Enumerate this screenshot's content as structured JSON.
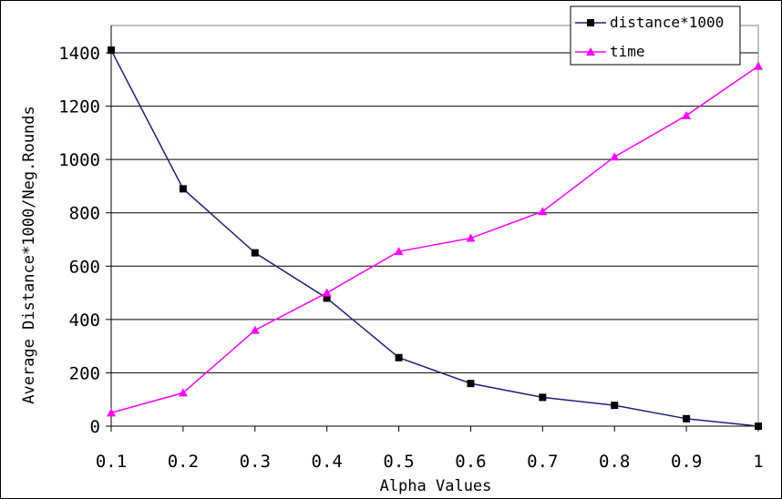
{
  "chart_data": {
    "type": "line",
    "xlabel": "Alpha Values",
    "ylabel": "Average Distance*1000/Neg.Rounds",
    "categories": [
      "0.1",
      "0.2",
      "0.3",
      "0.4",
      "0.5",
      "0.6",
      "0.7",
      "0.8",
      "0.9",
      "1"
    ],
    "ylim": [
      0,
      1400
    ],
    "yticks": [
      "0",
      "200",
      "400",
      "600",
      "800",
      "1000",
      "1200",
      "1400"
    ],
    "grid": "horizontal",
    "legend_position": "top-right",
    "series": [
      {
        "name": "distance*1000",
        "marker": "square",
        "color": "#1f1f7a",
        "values": [
          1410,
          890,
          650,
          480,
          257,
          160,
          108,
          78,
          28,
          0
        ]
      },
      {
        "name": "time",
        "marker": "triangle",
        "color": "#ff00ff",
        "values": [
          50,
          125,
          360,
          500,
          655,
          705,
          805,
          1010,
          1165,
          1350
        ]
      }
    ]
  }
}
